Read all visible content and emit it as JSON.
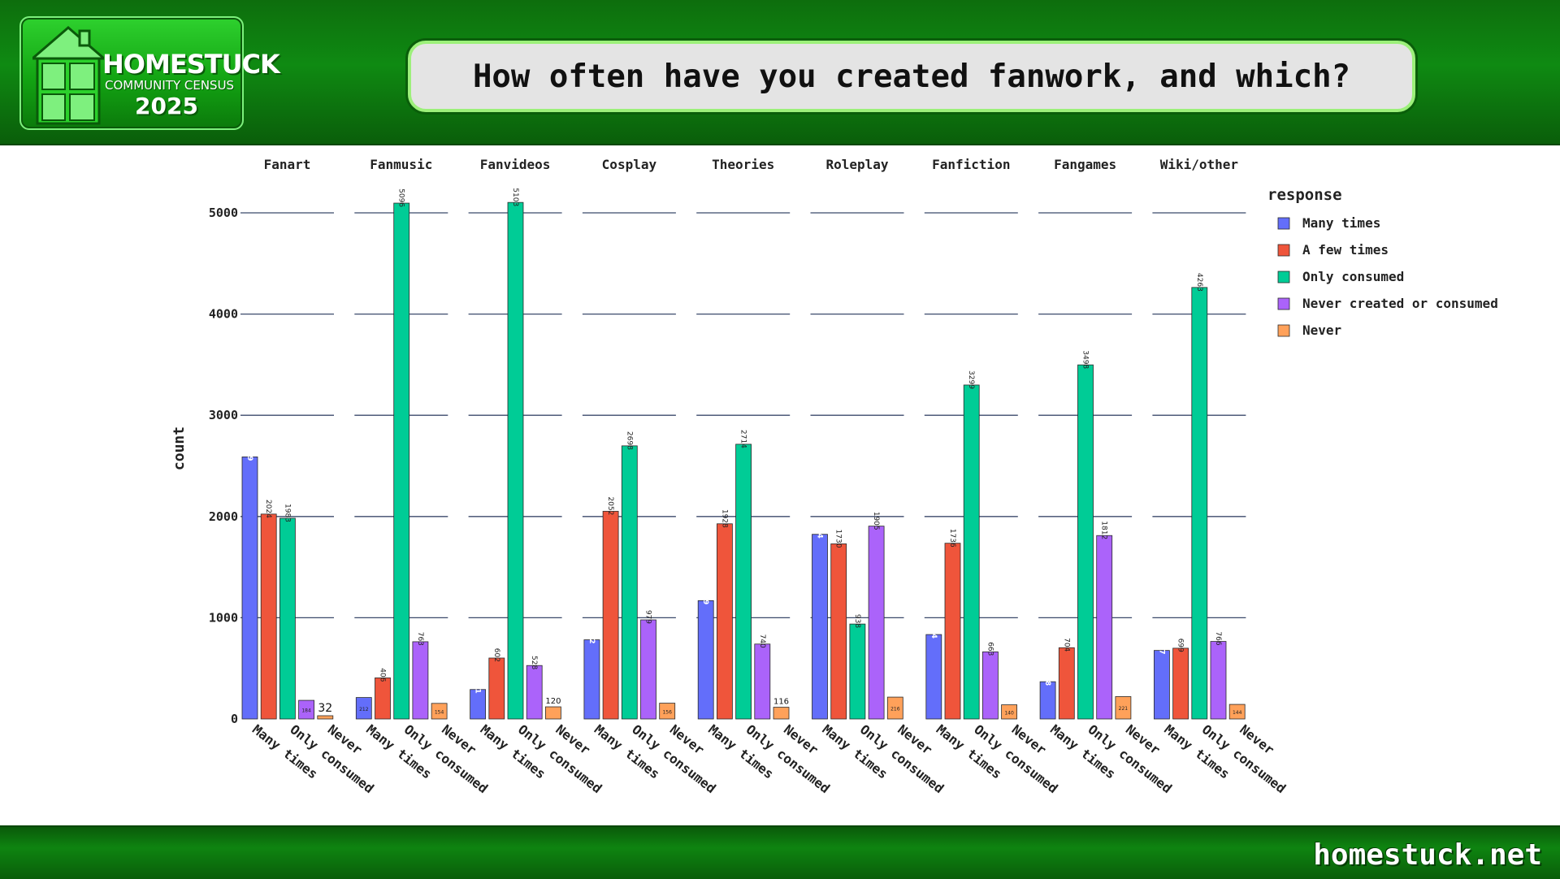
{
  "header": {
    "logo": {
      "line1": "HOMESTUCK",
      "line2": "COMMUNITY CENSUS",
      "line3": "2025"
    },
    "title": "How often have you created fanwork, and which?"
  },
  "footer": {
    "url": "homestuck.net"
  },
  "colors": {
    "Many times": "#636efa",
    "A few times": "#ef553b",
    "Only consumed": "#00cc96",
    "Never created or consumed": "#ab63fa",
    "Never": "#ffa15a"
  },
  "chart_data": {
    "type": "bar",
    "ylabel": "count",
    "ylim": [
      0,
      5000
    ],
    "yticks": [
      0,
      1000,
      2000,
      3000,
      4000,
      5000
    ],
    "legend_title": "response",
    "legend": [
      "Many times",
      "A few times",
      "Only consumed",
      "Never created or consumed",
      "Never"
    ],
    "x_tick_labels": [
      "Many times",
      "Only consumed",
      "Never"
    ],
    "facets": [
      {
        "name": "Fanart",
        "values": [
          2589,
          2024,
          1983,
          184,
          32
        ]
      },
      {
        "name": "Fanmusic",
        "values": [
          212,
          406,
          5096,
          763,
          154
        ]
      },
      {
        "name": "Fanvideos",
        "values": [
          291,
          602,
          5103,
          528,
          120
        ]
      },
      {
        "name": "Cosplay",
        "values": [
          782,
          2052,
          2698,
          979,
          156
        ]
      },
      {
        "name": "Theories",
        "values": [
          1169,
          1928,
          2714,
          740,
          116
        ]
      },
      {
        "name": "Roleplay",
        "values": [
          1824,
          1730,
          938,
          1905,
          216
        ]
      },
      {
        "name": "Fanfiction",
        "values": [
          834,
          1736,
          3299,
          663,
          140
        ]
      },
      {
        "name": "Fangames",
        "values": [
          368,
          704,
          3498,
          1812,
          221
        ]
      },
      {
        "name": "Wiki/other",
        "values": [
          677,
          699,
          4263,
          766,
          144
        ]
      }
    ]
  }
}
